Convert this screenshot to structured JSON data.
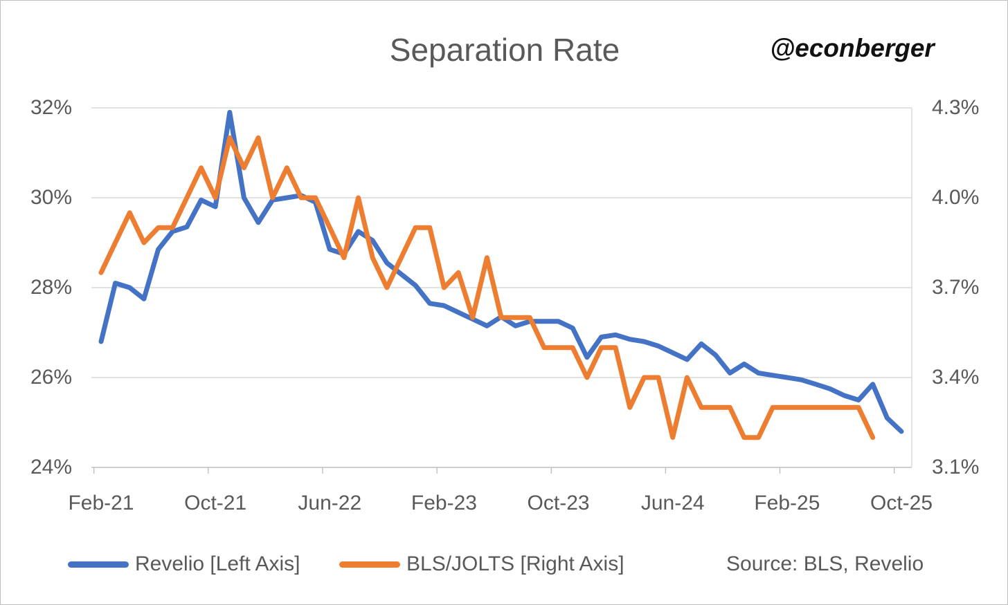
{
  "chart": {
    "title": "Separation Rate",
    "handle": "@econberger",
    "source_note": "Source: BLS, Revelio"
  },
  "colors": {
    "revelio_blue": "#4472C4",
    "jolts_orange": "#ED7D31",
    "gridline": "#D9D9D9",
    "axis_line": "#BFBFBF",
    "text_gray": "#595959",
    "handle_black": "#111111",
    "frame_border": "#BFBFBF"
  },
  "chart_data": {
    "type": "line",
    "title": "Separation Rate",
    "x_tick_labels": [
      "Feb-21",
      "Oct-21",
      "Jun-22",
      "Feb-23",
      "Oct-23",
      "Jun-24",
      "Feb-25",
      "Oct-25"
    ],
    "left_axis": {
      "tick_labels": [
        "32%",
        "30%",
        "28%",
        "26%",
        "24%"
      ],
      "min": 24,
      "max": 32,
      "step": 2
    },
    "right_axis": {
      "tick_labels": [
        "4.3%",
        "4.0%",
        "3.7%",
        "3.4%",
        "3.1%"
      ],
      "min": 3.1,
      "max": 4.3,
      "step": 0.3
    },
    "grid": true,
    "legend_position": "bottom",
    "categories": [
      "Feb-21",
      "Mar-21",
      "Apr-21",
      "May-21",
      "Jun-21",
      "Jul-21",
      "Aug-21",
      "Sep-21",
      "Oct-21",
      "Nov-21",
      "Dec-21",
      "Jan-22",
      "Feb-22",
      "Mar-22",
      "Apr-22",
      "May-22",
      "Jun-22",
      "Jul-22",
      "Aug-22",
      "Sep-22",
      "Oct-22",
      "Nov-22",
      "Dec-22",
      "Jan-23",
      "Feb-23",
      "Mar-23",
      "Apr-23",
      "May-23",
      "Jun-23",
      "Jul-23",
      "Aug-23",
      "Sep-23",
      "Oct-23",
      "Nov-23",
      "Dec-23",
      "Jan-24",
      "Feb-24",
      "Mar-24",
      "Apr-24",
      "May-24",
      "Jun-24",
      "Jul-24",
      "Aug-24",
      "Sep-24",
      "Oct-24",
      "Nov-24",
      "Dec-24",
      "Jan-25",
      "Feb-25",
      "Mar-25",
      "Apr-25",
      "May-25",
      "Jun-25",
      "Jul-25",
      "Aug-25",
      "Sep-25",
      "Oct-25"
    ],
    "series": [
      {
        "name": "Revelio [Left Axis]",
        "axis": "left",
        "color": "#4472C4",
        "values": [
          26.8,
          28.1,
          28.0,
          27.75,
          28.85,
          29.25,
          29.35,
          29.95,
          29.8,
          31.9,
          30.0,
          29.45,
          29.95,
          30.0,
          30.05,
          29.9,
          28.85,
          28.75,
          29.25,
          29.05,
          28.55,
          28.3,
          28.05,
          27.65,
          27.6,
          27.45,
          27.3,
          27.15,
          27.35,
          27.15,
          27.25,
          27.25,
          27.25,
          27.1,
          26.45,
          26.9,
          26.95,
          26.85,
          26.8,
          26.7,
          26.55,
          26.4,
          26.75,
          26.5,
          26.1,
          26.3,
          26.1,
          26.05,
          26.0,
          25.95,
          25.85,
          25.75,
          25.6,
          25.5,
          25.85,
          25.1,
          24.8
        ]
      },
      {
        "name": "BLS/JOLTS [Right Axis]",
        "axis": "right",
        "color": "#ED7D31",
        "values": [
          3.75,
          3.85,
          3.95,
          3.85,
          3.9,
          3.9,
          4.0,
          4.1,
          4.0,
          4.2,
          4.1,
          4.2,
          4.0,
          4.1,
          4.0,
          4.0,
          3.9,
          3.8,
          4.0,
          3.8,
          3.7,
          3.8,
          3.9,
          3.9,
          3.7,
          3.75,
          3.6,
          3.8,
          3.6,
          3.6,
          3.6,
          3.5,
          3.5,
          3.5,
          3.4,
          3.5,
          3.5,
          3.3,
          3.4,
          3.4,
          3.2,
          3.4,
          3.3,
          3.3,
          3.3,
          3.2,
          3.2,
          3.3,
          3.3,
          3.3,
          3.3,
          3.3,
          3.3,
          3.3,
          3.2,
          null,
          null
        ]
      }
    ]
  }
}
